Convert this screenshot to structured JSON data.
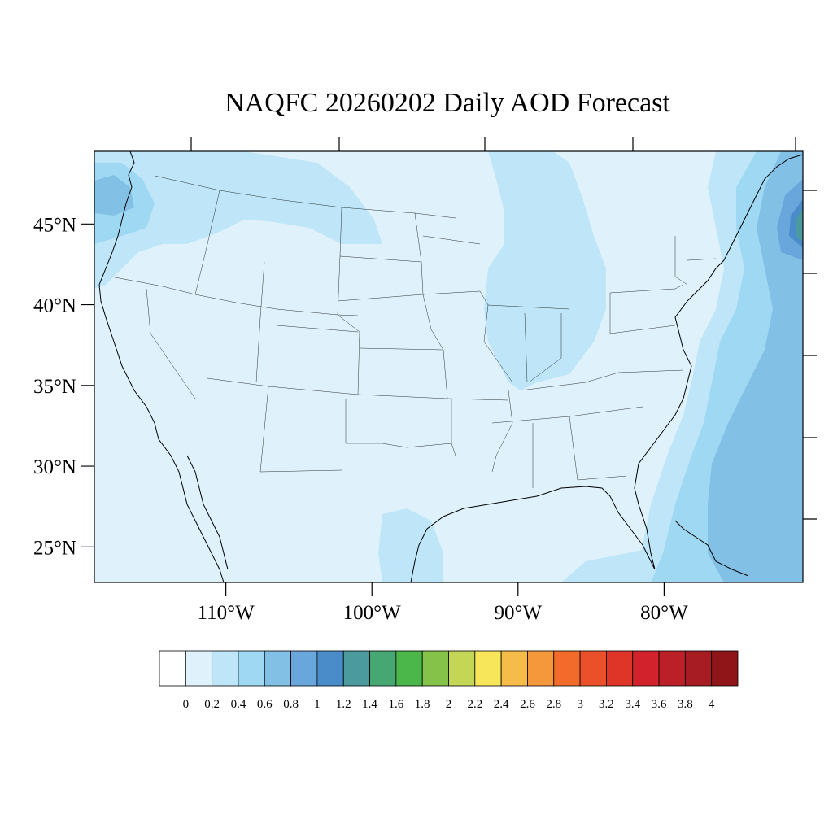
{
  "title": "NAQFC 20260202 Daily AOD Forecast",
  "map": {
    "lon_range": [
      -119,
      -70.5
    ],
    "lat_range": [
      22.8,
      49.5
    ],
    "lat_ticks": [
      {
        "value": 45,
        "label": "45°N"
      },
      {
        "value": 40,
        "label": "40°N"
      },
      {
        "value": 35,
        "label": "35°N"
      },
      {
        "value": 30,
        "label": "30°N"
      },
      {
        "value": 25,
        "label": "25°N"
      }
    ],
    "lon_ticks": [
      {
        "value": -110,
        "label": "110°W"
      },
      {
        "value": -100,
        "label": "100°W"
      },
      {
        "value": -90,
        "label": "90°W"
      },
      {
        "value": -80,
        "label": "80°W"
      }
    ],
    "background_color": "#dff2fb",
    "outline_color": "#000000"
  },
  "colorbar": {
    "labels": [
      "0",
      "0.2",
      "0.4",
      "0.6",
      "0.8",
      "1",
      "1.2",
      "1.4",
      "1.6",
      "1.8",
      "2",
      "2.2",
      "2.4",
      "2.6",
      "2.8",
      "3",
      "3.2",
      "3.4",
      "3.6",
      "3.8",
      "4"
    ],
    "colors": [
      "#ffffff",
      "#dff2fb",
      "#bfe6f8",
      "#9fd8f3",
      "#82c0e6",
      "#69a6dc",
      "#4a8cca",
      "#4a9a9e",
      "#46a772",
      "#4bb64a",
      "#84c24a",
      "#c4d655",
      "#f7e55a",
      "#f6bc4a",
      "#f5983c",
      "#f26b2b",
      "#ea502a",
      "#de3528",
      "#d2222b",
      "#bb1f27",
      "#a71c22",
      "#8f1518"
    ]
  }
}
